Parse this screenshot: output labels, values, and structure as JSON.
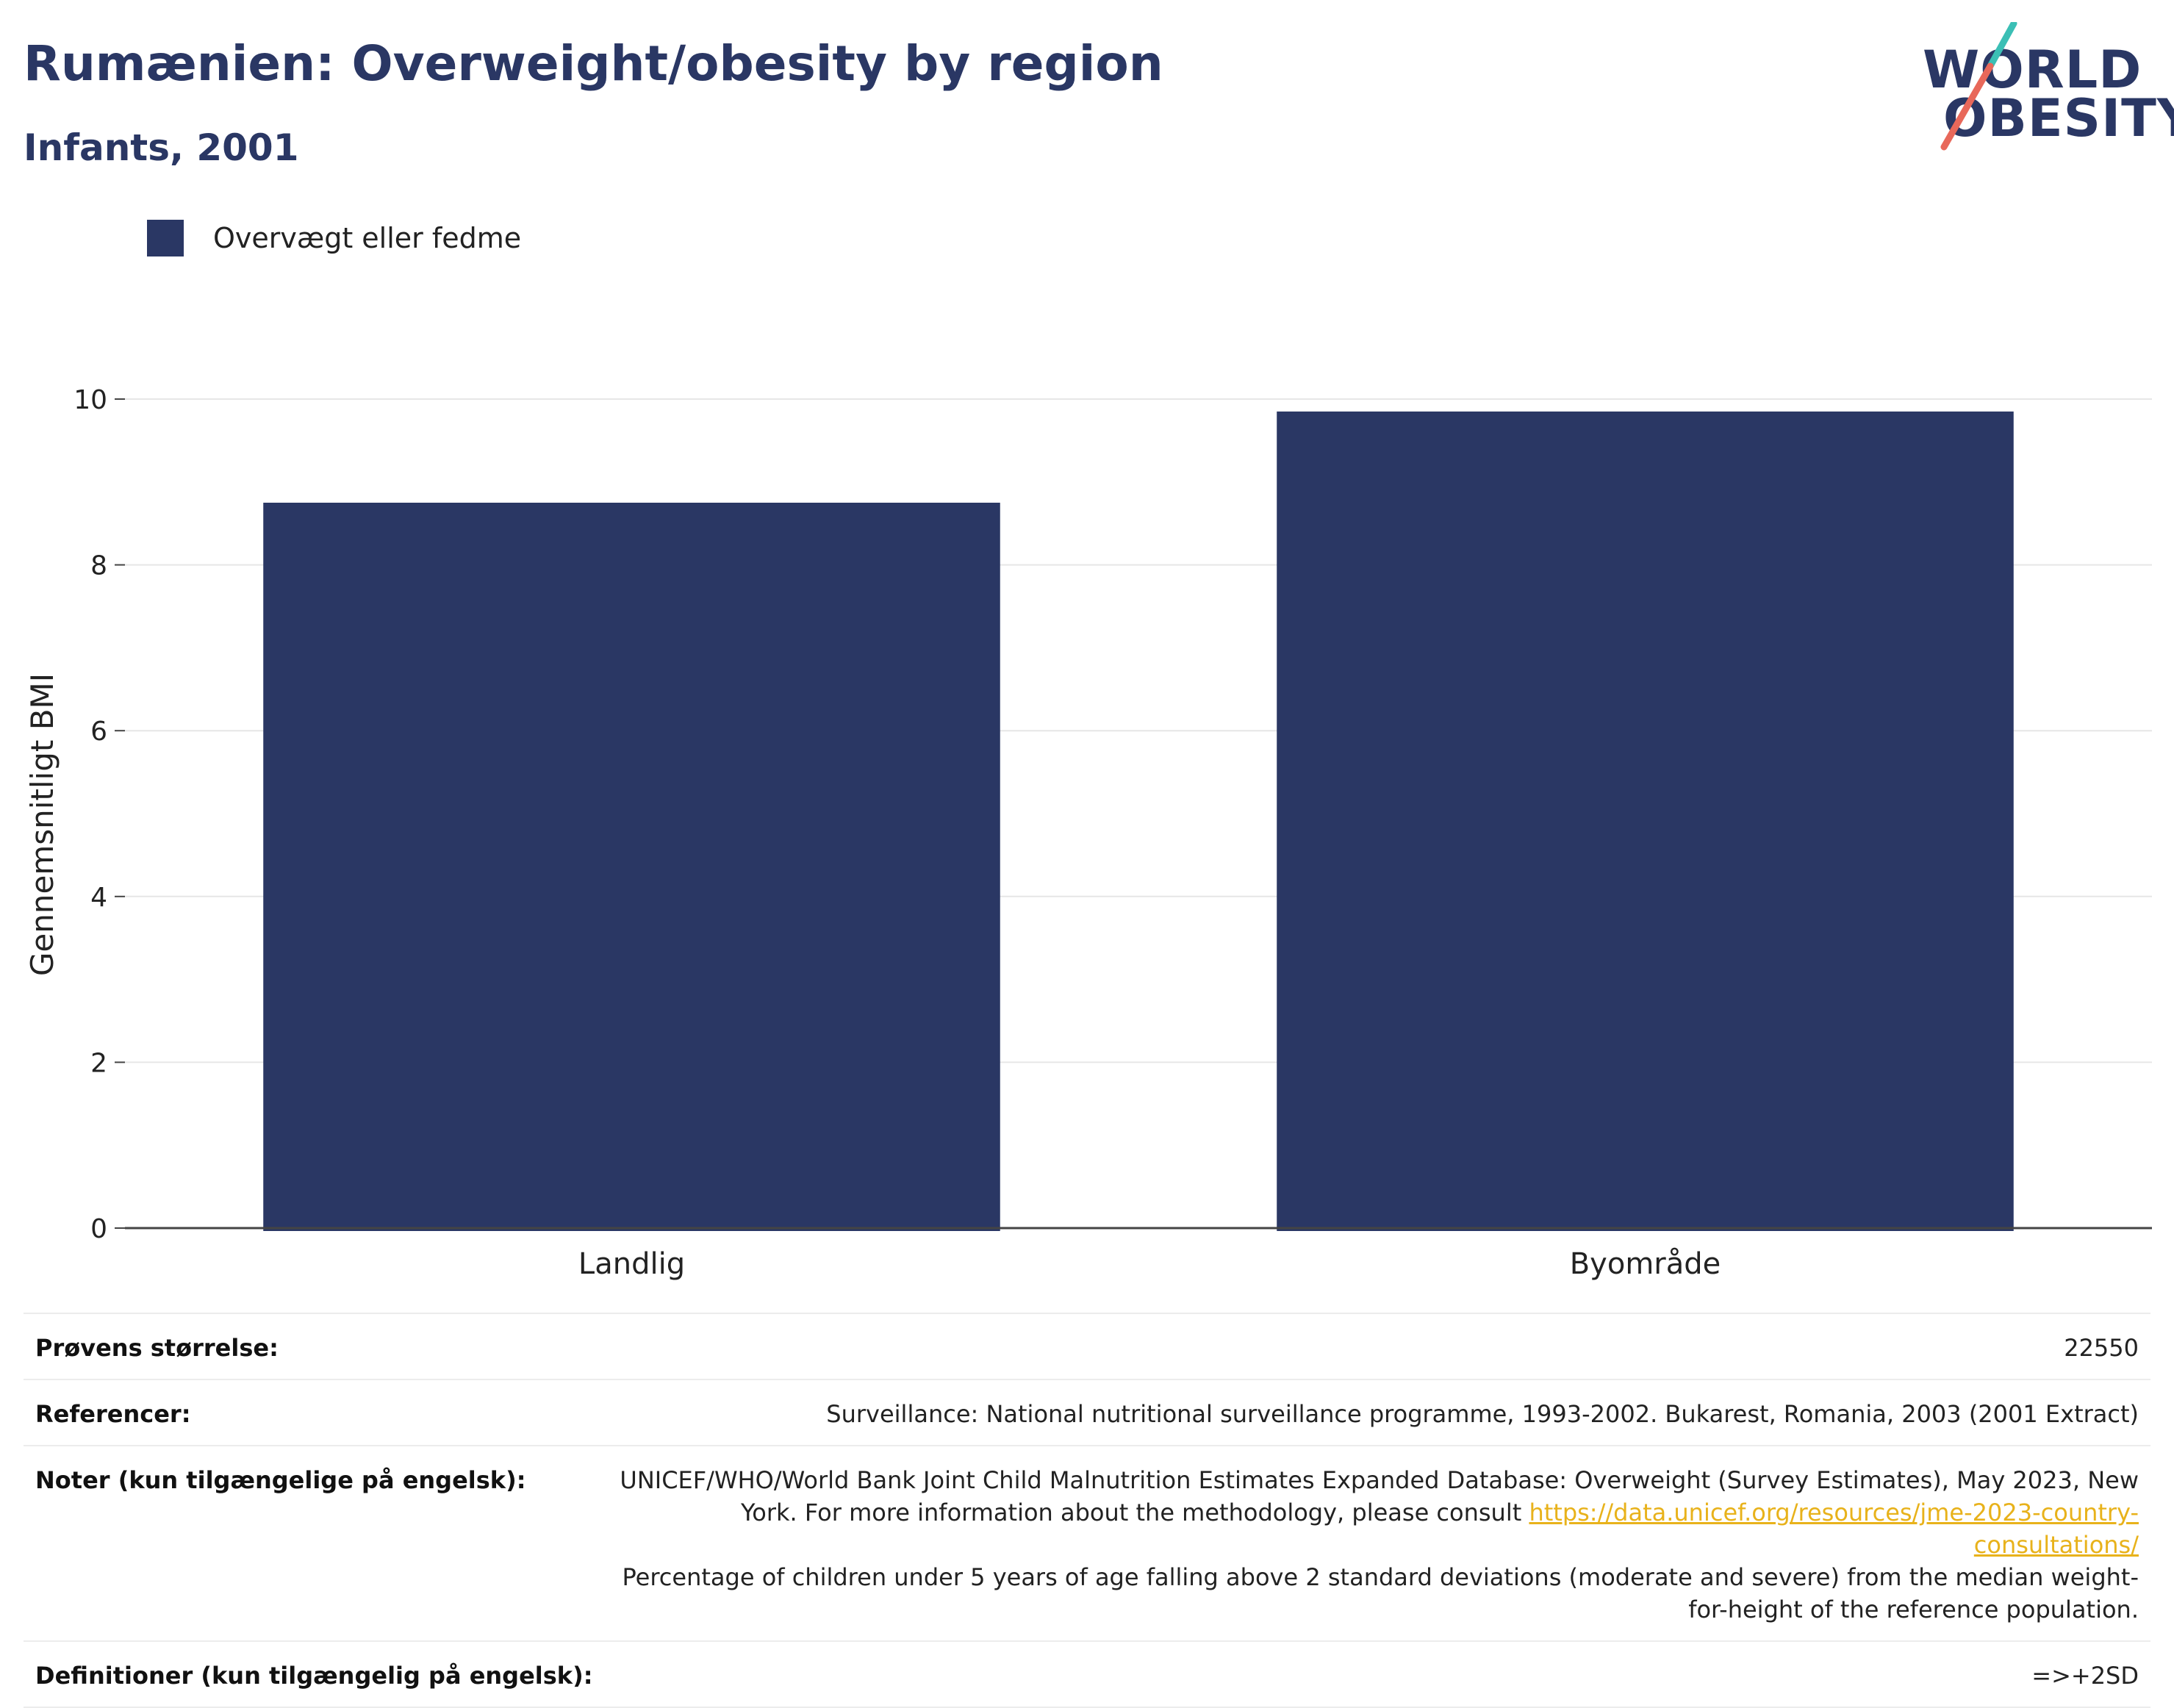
{
  "header": {
    "title": "Rumænien: Overweight/obesity by region",
    "subtitle": "Infants, 2001"
  },
  "logo": {
    "line1": "WORLD",
    "line2": "OBESITY",
    "accent_teal": "#3bbfb5",
    "accent_coral": "#e8685a"
  },
  "colors": {
    "bar": "#2a3764",
    "title": "#2a3764",
    "link": "#e8b21b",
    "grid": "#e6e6e6"
  },
  "chart_data": {
    "type": "bar",
    "categories": [
      "Landlig",
      "Byområde"
    ],
    "series": [
      {
        "name": "Overvægt eller fedme",
        "values": [
          8.75,
          9.85
        ]
      }
    ],
    "ylabel": "Gennemsnitligt BMI",
    "xlabel": "",
    "ylim": [
      0,
      10
    ],
    "yticks": [
      0,
      2,
      4,
      6,
      8,
      10
    ],
    "grid": true,
    "legend_position": "top-left"
  },
  "info": {
    "sample_label": "Prøvens størrelse:",
    "sample_value": "22550",
    "refs_label": "Referencer:",
    "refs_value": "Surveillance: National nutritional surveillance programme, 1993-2002. Bukarest, Romania, 2003 (2001 Extract)",
    "notes_label": "Noter (kun tilgængelige på engelsk):",
    "notes_text1": "UNICEF/WHO/World Bank Joint Child Malnutrition Estimates Expanded Database: Overweight (Survey Estimates), May 2023, New York. For more information about the methodology, please consult",
    "notes_link": "https://data.unicef.org/resources/jme-2023-country-consultations/",
    "notes_text2": "Percentage of children under 5 years of age falling above 2 standard deviations (moderate and severe) from the median weight-for-height of the reference population.",
    "defs_label": "Definitioner (kun tilgængelig på engelsk):",
    "defs_value": "=>+2SD"
  }
}
